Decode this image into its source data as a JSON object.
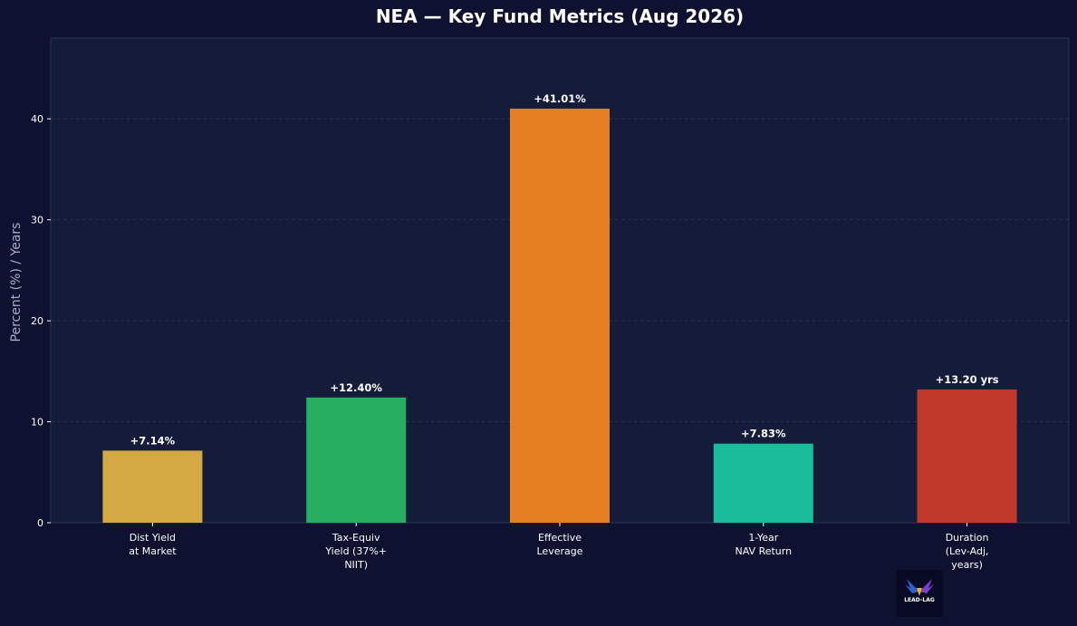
{
  "chart_data": {
    "type": "bar",
    "title": "NEA — Key Fund Metrics (Aug 2026)",
    "xlabel": "",
    "ylabel": "Percent (%) / Years",
    "ylim": [
      0,
      48
    ],
    "yticks": [
      0,
      10,
      20,
      30,
      40
    ],
    "grid": true,
    "categories": [
      [
        "Dist Yield",
        "at Market"
      ],
      [
        "Tax-Equiv",
        "Yield (37%+",
        "NIIT)"
      ],
      [
        "Effective",
        "Leverage"
      ],
      [
        "1-Year",
        "NAV Return"
      ],
      [
        "Duration",
        "(Lev-Adj,",
        "years)"
      ]
    ],
    "values": [
      7.14,
      12.4,
      41.01,
      7.83,
      13.2
    ],
    "value_labels": [
      "+7.14%",
      "+12.40%",
      "+41.01%",
      "+7.83%",
      "+13.20 yrs"
    ],
    "colors": [
      "#d4a843",
      "#27ae60",
      "#e67e22",
      "#1abc9c",
      "#c0392b"
    ]
  },
  "logo": {
    "text": "LEAD-LAG",
    "icon": "eagle-logo-icon"
  }
}
